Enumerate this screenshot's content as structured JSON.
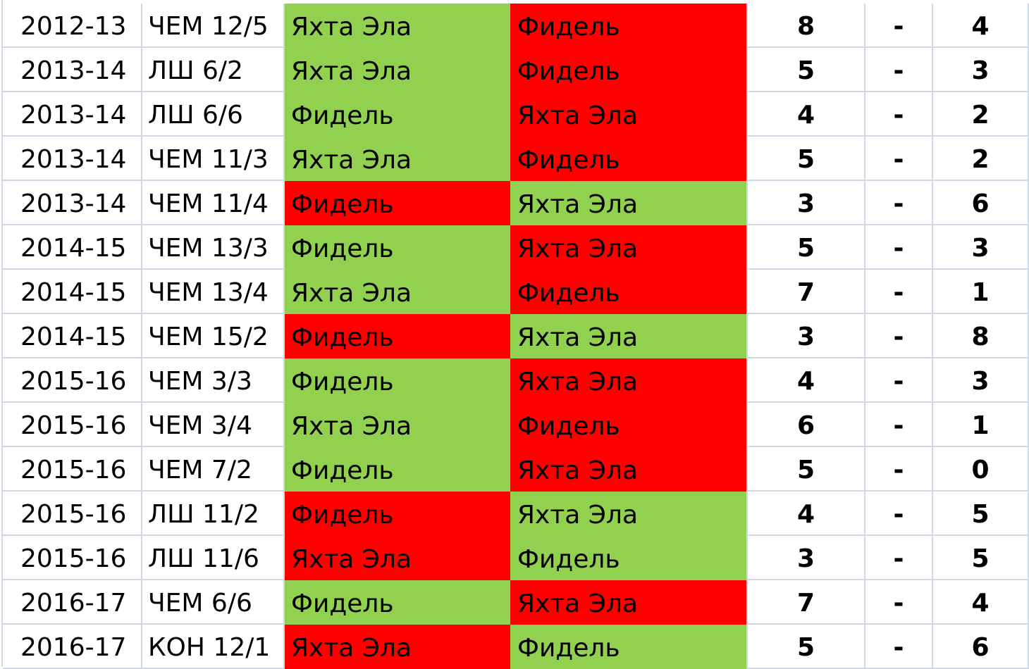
{
  "colors": {
    "win": "#92d050",
    "lose": "#ff0000",
    "grid": "#d0d7e5"
  },
  "rows": [
    {
      "season": "2012-13",
      "comp": "ЧЕМ 12/5",
      "team1": "Яхта Эла",
      "team2": "Фидель",
      "score1": "8",
      "dash": "-",
      "score2": "4",
      "team1_color": "win"
    },
    {
      "season": "2013-14",
      "comp": "ЛШ 6/2",
      "team1": "Яхта Эла",
      "team2": "Фидель",
      "score1": "5",
      "dash": "-",
      "score2": "3",
      "team1_color": "win"
    },
    {
      "season": "2013-14",
      "comp": "ЛШ 6/6",
      "team1": "Фидель",
      "team2": "Яхта Эла",
      "score1": "4",
      "dash": "-",
      "score2": "2",
      "team1_color": "win"
    },
    {
      "season": "2013-14",
      "comp": "ЧЕМ 11/3",
      "team1": "Яхта Эла",
      "team2": "Фидель",
      "score1": "5",
      "dash": "-",
      "score2": "2",
      "team1_color": "win"
    },
    {
      "season": "2013-14",
      "comp": "ЧЕМ 11/4",
      "team1": "Фидель",
      "team2": "Яхта Эла",
      "score1": "3",
      "dash": "-",
      "score2": "6",
      "team1_color": "lose"
    },
    {
      "season": "2014-15",
      "comp": "ЧЕМ 13/3",
      "team1": "Фидель",
      "team2": "Яхта Эла",
      "score1": "5",
      "dash": "-",
      "score2": "3",
      "team1_color": "win"
    },
    {
      "season": "2014-15",
      "comp": "ЧЕМ 13/4",
      "team1": "Яхта Эла",
      "team2": "Фидель",
      "score1": "7",
      "dash": "-",
      "score2": "1",
      "team1_color": "win"
    },
    {
      "season": "2014-15",
      "comp": "ЧЕМ 15/2",
      "team1": "Фидель",
      "team2": "Яхта Эла",
      "score1": "3",
      "dash": "-",
      "score2": "8",
      "team1_color": "lose"
    },
    {
      "season": "2015-16",
      "comp": "ЧЕМ 3/3",
      "team1": "Фидель",
      "team2": "Яхта Эла",
      "score1": "4",
      "dash": "-",
      "score2": "3",
      "team1_color": "win"
    },
    {
      "season": "2015-16",
      "comp": "ЧЕМ 3/4",
      "team1": "Яхта Эла",
      "team2": "Фидель",
      "score1": "6",
      "dash": "-",
      "score2": "1",
      "team1_color": "win"
    },
    {
      "season": "2015-16",
      "comp": "ЧЕМ 7/2",
      "team1": "Фидель",
      "team2": "Яхта Эла",
      "score1": "5",
      "dash": "-",
      "score2": "0",
      "team1_color": "win"
    },
    {
      "season": "2015-16",
      "comp": "ЛШ 11/2",
      "team1": "Фидель",
      "team2": "Яхта Эла",
      "score1": "4",
      "dash": "-",
      "score2": "5",
      "team1_color": "lose"
    },
    {
      "season": "2015-16",
      "comp": "ЛШ 11/6",
      "team1": "Яхта Эла",
      "team2": "Фидель",
      "score1": "3",
      "dash": "-",
      "score2": "5",
      "team1_color": "lose"
    },
    {
      "season": "2016-17",
      "comp": "ЧЕМ 6/6",
      "team1": "Фидель",
      "team2": "Яхта Эла",
      "score1": "7",
      "dash": "-",
      "score2": "4",
      "team1_color": "win"
    },
    {
      "season": "2016-17",
      "comp": "КОН 12/1",
      "team1": "Яхта Эла",
      "team2": "Фидель",
      "score1": "5",
      "dash": "-",
      "score2": "6",
      "team1_color": "lose"
    }
  ]
}
